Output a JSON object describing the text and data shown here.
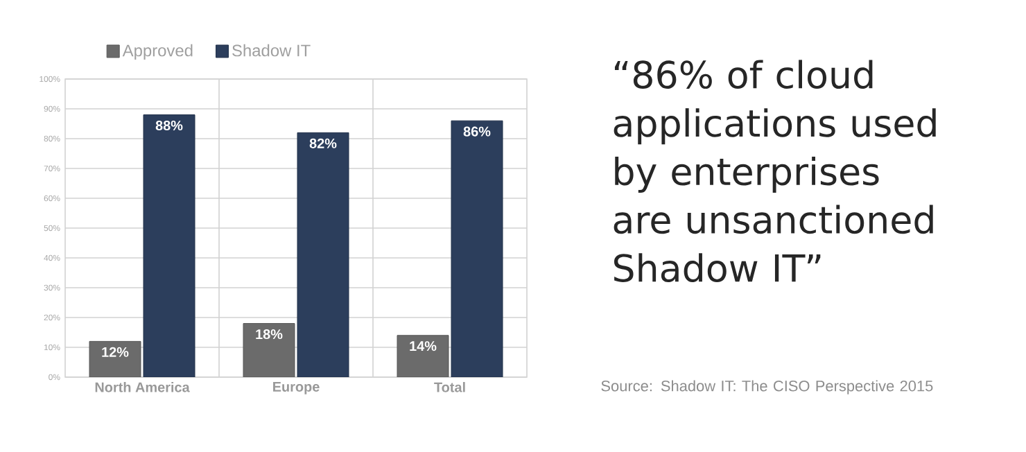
{
  "chart_data": {
    "type": "bar",
    "categories": [
      "North America",
      "Europe",
      "Total"
    ],
    "series": [
      {
        "name": "Approved",
        "color": "#6b6b6b",
        "values": [
          12,
          18,
          14
        ],
        "value_labels": [
          "12%",
          "18%",
          "14%"
        ]
      },
      {
        "name": "Shadow IT",
        "color": "#2c3e5c",
        "values": [
          88,
          82,
          86
        ],
        "value_labels": [
          "88%",
          "82%",
          "86%"
        ]
      }
    ],
    "ylim": [
      0,
      100
    ],
    "yticks": [
      {
        "value": 0,
        "label": "0%"
      },
      {
        "value": 10,
        "label": "10%"
      },
      {
        "value": 20,
        "label": "20%"
      },
      {
        "value": 30,
        "label": "30%"
      },
      {
        "value": 40,
        "label": "40%"
      },
      {
        "value": 50,
        "label": "50%"
      },
      {
        "value": 60,
        "label": "60%"
      },
      {
        "value": 70,
        "label": "70%"
      },
      {
        "value": 80,
        "label": "80%"
      },
      {
        "value": 90,
        "label": "90%"
      },
      {
        "value": 100,
        "label": "100%"
      }
    ],
    "grid": true,
    "legend": "top",
    "annotations": [
      "“86% of cloud applications used by enterprises are unsanctioned Shadow IT”",
      "Source: Shadow IT: The CISO Perspective 2015"
    ]
  }
}
